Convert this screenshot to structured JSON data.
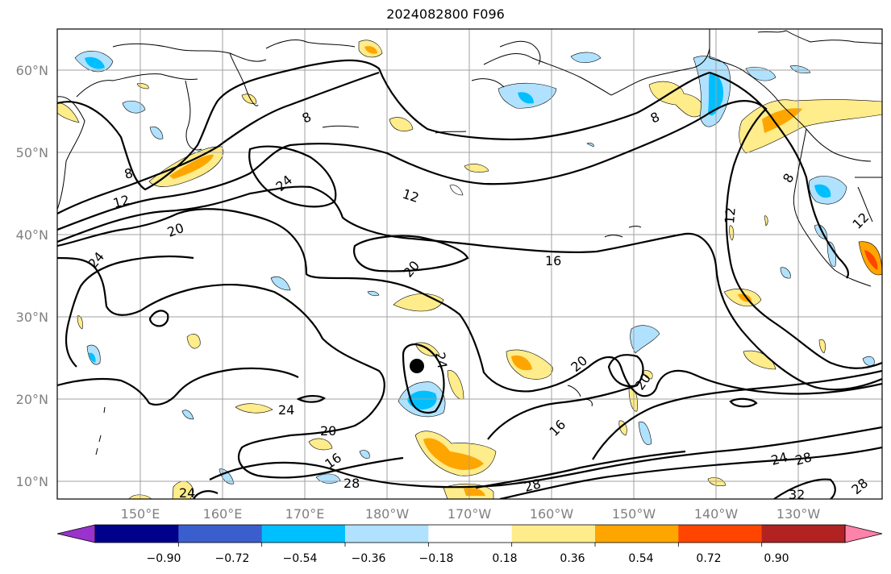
{
  "title": "2024082800 F096",
  "latitude_labels": [
    "60°N",
    "50°N",
    "40°N",
    "30°N",
    "20°N",
    "10°N"
  ],
  "longitude_labels": [
    "150°E",
    "160°E",
    "170°E",
    "180°W",
    "170°W",
    "160°W",
    "150°W",
    "140°W",
    "130°W"
  ],
  "contour_labels": [
    "8",
    "8",
    "8",
    "8",
    "12",
    "12",
    "12",
    "12",
    "16",
    "16",
    "16",
    "20",
    "20",
    "20",
    "20",
    "20",
    "24",
    "24",
    "24",
    "24",
    "24",
    "24",
    "28",
    "28",
    "28",
    "28",
    "32"
  ],
  "colorbar": {
    "ticks": [
      "−0.90",
      "−0.72",
      "−0.54",
      "−0.36",
      "−0.18",
      "0.18",
      "0.36",
      "0.54",
      "0.72",
      "0.90"
    ],
    "colors": [
      "#9a32cd",
      "#00008b",
      "#3a5fcd",
      "#00bfff",
      "#b0e2ff",
      "#ffffff",
      "#ffec8b",
      "#ffa500",
      "#ff4500",
      "#b22222",
      "#ff82ab"
    ]
  },
  "colors": {
    "text_axis": "#808080",
    "grid": "#a0a0a0",
    "contour": "#000000",
    "marker": "#000000"
  }
}
